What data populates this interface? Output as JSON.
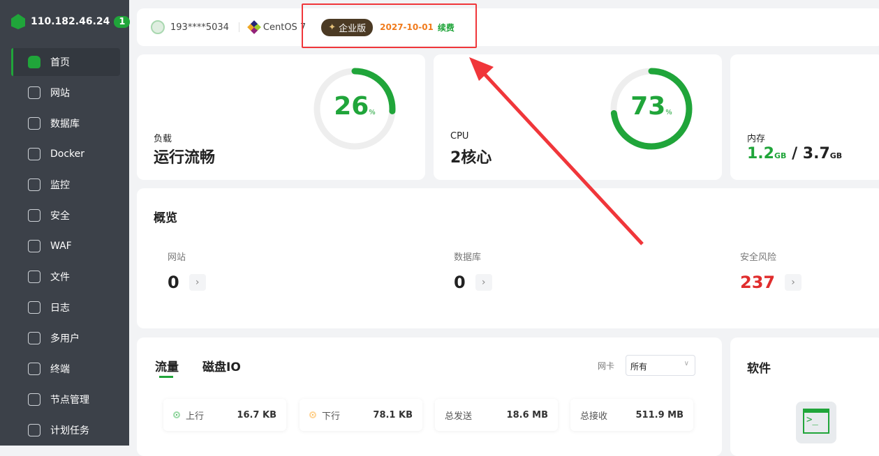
{
  "sidebar": {
    "host": "110.182.46.24",
    "badge": "1",
    "items": [
      {
        "label": "首页",
        "icon": "home-icon"
      },
      {
        "label": "网站",
        "icon": "website-icon"
      },
      {
        "label": "数据库",
        "icon": "database-icon"
      },
      {
        "label": "Docker",
        "icon": "docker-icon"
      },
      {
        "label": "监控",
        "icon": "monitor-icon"
      },
      {
        "label": "安全",
        "icon": "shield-icon"
      },
      {
        "label": "WAF",
        "icon": "waf-icon"
      },
      {
        "label": "文件",
        "icon": "folder-icon"
      },
      {
        "label": "日志",
        "icon": "log-icon"
      },
      {
        "label": "多用户",
        "icon": "users-icon"
      },
      {
        "label": "终端",
        "icon": "terminal-icon"
      },
      {
        "label": "节点管理",
        "icon": "node-icon"
      },
      {
        "label": "计划任务",
        "icon": "calendar-icon"
      }
    ]
  },
  "header": {
    "user": "193****5034",
    "os": "CentOS 7",
    "edition": "企业版",
    "expiry": "2027-10-01",
    "renew": "续费"
  },
  "stats": {
    "load": {
      "label": "负载",
      "value": "运行流畅",
      "percent": 26,
      "unit": "%"
    },
    "cpu": {
      "label": "CPU",
      "value": "2核心",
      "percent": 73,
      "unit": "%"
    },
    "memory": {
      "label": "内存",
      "used": "1.2",
      "total": "3.7",
      "unit": "GB",
      "sep": "/"
    }
  },
  "overview": {
    "title": "概览",
    "items": [
      {
        "label": "网站",
        "value": "0"
      },
      {
        "label": "数据库",
        "value": "0"
      },
      {
        "label": "安全风险",
        "value": "237"
      }
    ]
  },
  "traffic": {
    "tabs": [
      "流量",
      "磁盘IO"
    ],
    "nic_label": "网卡",
    "nic_value": "所有",
    "boxes": [
      {
        "label": "上行",
        "value": "16.7 KB"
      },
      {
        "label": "下行",
        "value": "78.1 KB"
      },
      {
        "label": "总发送",
        "value": "18.6 MB"
      },
      {
        "label": "总接收",
        "value": "511.9 MB"
      }
    ]
  },
  "software": {
    "title": "软件",
    "icon": "terminal-icon"
  },
  "colors": {
    "accent": "#20a53a",
    "risk": "#e02d2d",
    "annotation": "#f0363a",
    "expiry": "#f07b1d"
  }
}
